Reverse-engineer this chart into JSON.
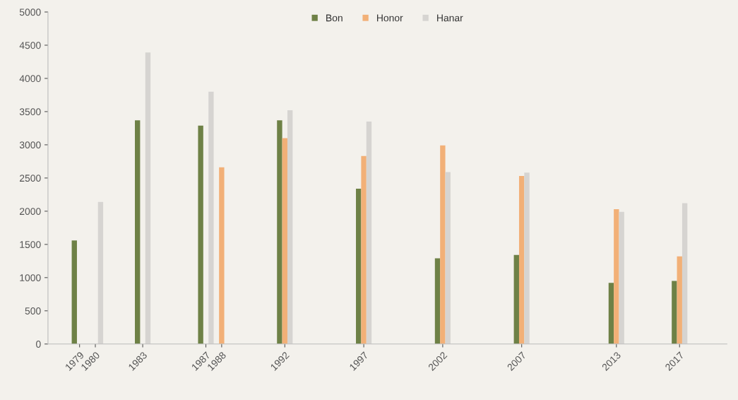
{
  "chart_data": {
    "type": "bar",
    "xlim": [
      1977,
      2020
    ],
    "xticks": [
      1979,
      1980,
      1983,
      1987,
      1988,
      1992,
      1997,
      2002,
      2007,
      2013,
      2017
    ],
    "ylim": [
      0,
      5000
    ],
    "yticks": [
      0,
      500,
      1000,
      1500,
      2000,
      2500,
      3000,
      3500,
      4000,
      4500,
      5000
    ],
    "grid": false,
    "legend": "top",
    "series": [
      {
        "name": "Bon",
        "color": "#6e8146",
        "x": [
          1979,
          1983,
          1987,
          1992,
          1997,
          2002,
          2007,
          2013,
          2017
        ],
        "values": [
          1560,
          3370,
          3290,
          3370,
          2340,
          1290,
          1340,
          920,
          950
        ]
      },
      {
        "name": "Honor",
        "color": "#f2b077",
        "x": [
          1988,
          1992,
          1997,
          2002,
          2007,
          2013,
          2017
        ],
        "values": [
          2660,
          3100,
          2830,
          2990,
          2530,
          2030,
          1320
        ]
      },
      {
        "name": "Hanar",
        "color": "#d6d4d1",
        "x": [
          1980,
          1983,
          1987,
          1992,
          1997,
          2002,
          2007,
          2013,
          2017
        ],
        "values": [
          2140,
          4390,
          3800,
          3520,
          3350,
          2590,
          2580,
          1990,
          2120
        ]
      }
    ]
  }
}
